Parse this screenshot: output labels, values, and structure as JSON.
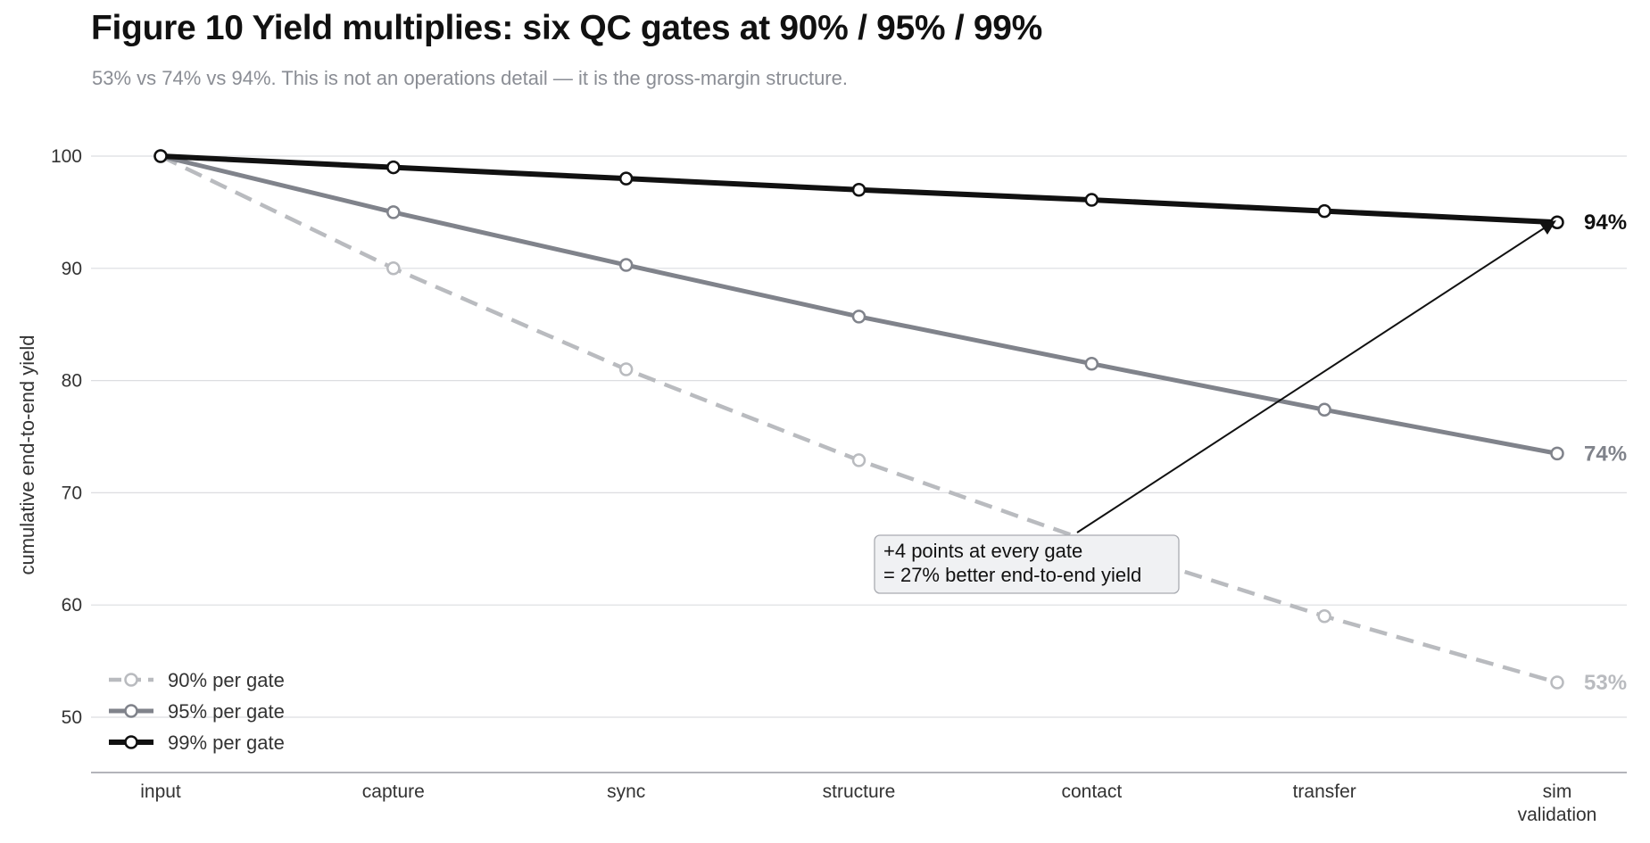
{
  "chart_data": {
    "type": "line",
    "title": "Figure 10  Yield multiplies: six QC gates at 90% / 95% / 99%",
    "subtitle": "53% vs 74% vs 94%. This is not an operations detail — it is the gross-margin structure.",
    "categories": [
      "input",
      "capture",
      "sync",
      "structure",
      "contact",
      "transfer",
      "sim validation"
    ],
    "ylabel": "cumulative end-to-end yield",
    "ylim": [
      45,
      100
    ],
    "yticks": [
      50,
      60,
      70,
      80,
      90,
      100
    ],
    "grid": true,
    "legend_position": "bottom-left",
    "series": [
      {
        "name": "90% per gate",
        "values": [
          100,
          90,
          81,
          72.9,
          65.6,
          59.0,
          53.1
        ],
        "end_label": "53%",
        "color": "#b9bbbf",
        "dashed": true
      },
      {
        "name": "95% per gate",
        "values": [
          100,
          95,
          90.3,
          85.7,
          81.5,
          77.4,
          73.5
        ],
        "end_label": "74%",
        "color": "#80838b",
        "dashed": false
      },
      {
        "name": "99% per gate",
        "values": [
          100,
          99,
          98.0,
          97.0,
          96.1,
          95.1,
          94.1
        ],
        "end_label": "94%",
        "color": "#111111",
        "dashed": false
      }
    ],
    "annotation": {
      "lines": [
        "+4 points at every gate",
        "= 27% better end-to-end yield"
      ]
    }
  }
}
